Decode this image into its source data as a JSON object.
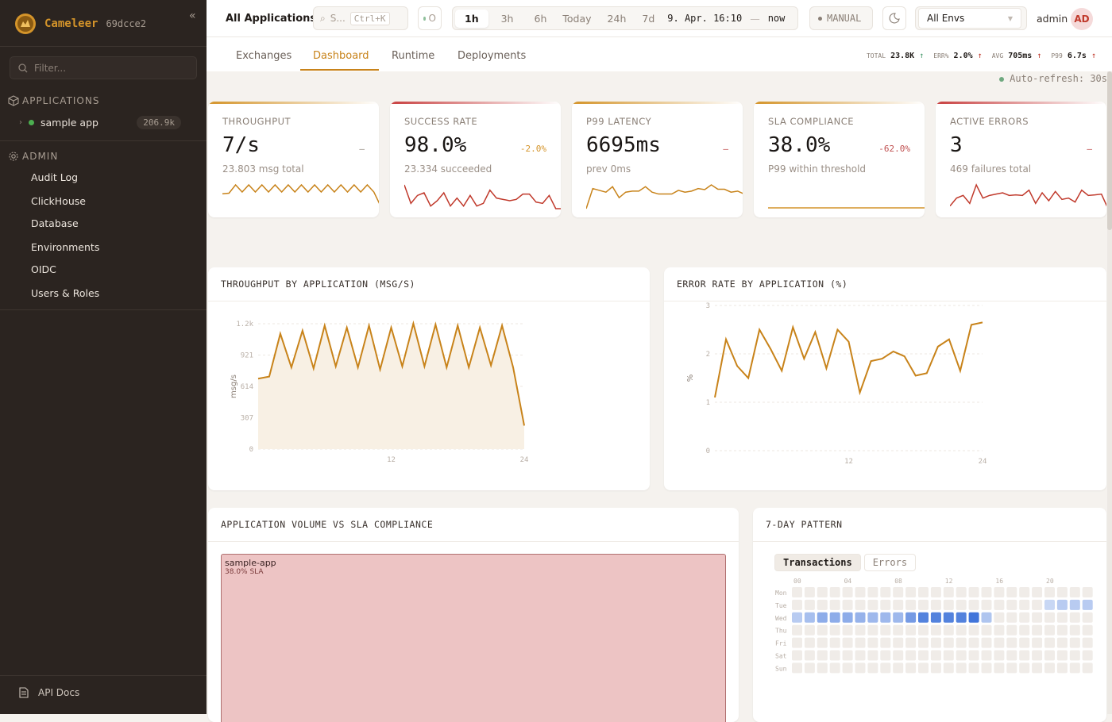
{
  "brand": {
    "name": "Cameleer",
    "version": "69dcce2",
    "collapse": "«"
  },
  "sidebar": {
    "filter_placeholder": "Filter...",
    "applications_label": "APPLICATIONS",
    "apps": [
      {
        "name": "sample app",
        "count": "206.9k",
        "status_color": "#4caf50"
      }
    ],
    "admin_label": "ADMIN",
    "admin_items": [
      "Audit Log",
      "ClickHouse",
      "Database",
      "Environments",
      "OIDC",
      "Users & Roles"
    ],
    "api_docs": "API Docs"
  },
  "topbar": {
    "scope": "All Applications",
    "search_placeholder": "S...",
    "search_shortcut": "Ctrl+K",
    "status_label": "O",
    "ranges": [
      "1h",
      "3h",
      "6h",
      "Today",
      "24h",
      "7d"
    ],
    "active_range": "1h",
    "range_from": "9. Apr. 16:10",
    "range_sep": "—",
    "range_to": "now",
    "refresh_mode": "MANUAL",
    "env": "All Envs",
    "user": "admin",
    "avatar": "AD"
  },
  "tabs": [
    "Exchanges",
    "Dashboard",
    "Runtime",
    "Deployments"
  ],
  "active_tab": "Dashboard",
  "stats": [
    {
      "label": "TOTAL",
      "value": "23.8K",
      "arrow": "↑",
      "dir": "good"
    },
    {
      "label": "ERR%",
      "value": "2.0%",
      "arrow": "↑",
      "dir": "bad"
    },
    {
      "label": "AVG",
      "value": "705ms",
      "arrow": "↑",
      "dir": "bad"
    },
    {
      "label": "P99",
      "value": "6.7s",
      "arrow": "↑",
      "dir": "bad"
    }
  ],
  "auto_refresh": "Auto-refresh: 30s",
  "kpis": [
    {
      "label": "THROUGHPUT",
      "value": "7/s",
      "delta": "–",
      "delta_color": "#9a8f86",
      "sub": "23.803 msg total",
      "accent": "#d4942a",
      "line_color": "#c8831a",
      "spark": [
        5,
        5.2,
        8,
        5.6,
        8,
        5.6,
        8,
        5.6,
        8,
        5.6,
        8,
        5.6,
        8,
        5.6,
        8,
        5.6,
        8,
        5.6,
        8,
        5.6,
        8,
        5.6,
        8,
        5.6,
        1
      ]
    },
    {
      "label": "SUCCESS RATE",
      "value": "98.0%",
      "delta": "-2.0%",
      "delta_color": "#d4942a",
      "sub": "23.334 succeeded",
      "accent": "#c84040",
      "line_color": "#c0392b",
      "spark": [
        9,
        2,
        5,
        6,
        1,
        3,
        6,
        1,
        4,
        1,
        5,
        1,
        2,
        7,
        4,
        3.5,
        3,
        3.5,
        5.5,
        5.5,
        2.5,
        2,
        5,
        0,
        0
      ]
    },
    {
      "label": "P99 LATENCY",
      "value": "6695ms",
      "delta": "–",
      "delta_color": "#c05050",
      "sub": "prev 0ms",
      "accent": "#d4942a",
      "line_color": "#c8831a",
      "spark": [
        0,
        5.5,
        5,
        4.5,
        6,
        3,
        4.5,
        4.8,
        4.8,
        6,
        4.5,
        4,
        4,
        4,
        5,
        4.5,
        4.8,
        5.5,
        5.2,
        6.5,
        5.3,
        5.3,
        4.5,
        4.8,
        4
      ]
    },
    {
      "label": "SLA COMPLIANCE",
      "value": "38.0%",
      "delta": "-62.0%",
      "delta_color": "#c05050",
      "sub": "P99 within threshold",
      "accent": "#d4942a",
      "line_color": "#d4942a",
      "spark": [
        0,
        0
      ]
    },
    {
      "label": "ACTIVE ERRORS",
      "value": "3",
      "delta": "–",
      "delta_color": "#c05050",
      "sub": "469 failures total",
      "accent": "#c84040",
      "line_color": "#c0392b",
      "spark": [
        1,
        4,
        5,
        2,
        9,
        4,
        5,
        5.5,
        6,
        5,
        5.2,
        5,
        7,
        2,
        6,
        3,
        6.5,
        3.5,
        4,
        2.5,
        7,
        5,
        5.2,
        5.5,
        0
      ]
    }
  ],
  "chart_data": [
    {
      "type": "area",
      "title": "THROUGHPUT BY APPLICATION (MSG/S)",
      "xlabel": "",
      "ylabel": "msg/s",
      "ylim": [
        0,
        1228
      ],
      "yticks": [
        "0",
        "307",
        "614",
        "921",
        "1.2k"
      ],
      "xticks": [
        "12",
        "24"
      ],
      "grid": true,
      "color": "#c8831a",
      "x": [
        0,
        1,
        2,
        3,
        4,
        5,
        6,
        7,
        8,
        9,
        10,
        11,
        12,
        13,
        14,
        15,
        16,
        17,
        18,
        19,
        20,
        21,
        22,
        23,
        24
      ],
      "values": [
        690,
        710,
        1130,
        800,
        1160,
        790,
        1210,
        810,
        1190,
        800,
        1210,
        780,
        1190,
        810,
        1230,
        810,
        1220,
        800,
        1210,
        800,
        1190,
        820,
        1210,
        800,
        230
      ]
    },
    {
      "type": "line",
      "title": "ERROR RATE BY APPLICATION (%)",
      "xlabel": "",
      "ylabel": "%",
      "ylim": [
        0,
        3
      ],
      "yticks": [
        "0",
        "1",
        "2",
        "3"
      ],
      "xticks": [
        "12",
        "24"
      ],
      "grid": true,
      "color": "#c8831a",
      "x": [
        0,
        1,
        2,
        3,
        4,
        5,
        6,
        7,
        8,
        9,
        10,
        11,
        12,
        13,
        14,
        15,
        16,
        17,
        18,
        19,
        20,
        21,
        22,
        23,
        24
      ],
      "values": [
        1.1,
        2.3,
        1.75,
        1.5,
        2.5,
        2.1,
        1.65,
        2.55,
        1.9,
        2.45,
        1.7,
        2.5,
        2.25,
        1.2,
        1.85,
        1.9,
        2.05,
        1.95,
        1.55,
        1.6,
        2.15,
        2.3,
        1.65,
        2.6,
        2.65
      ]
    },
    {
      "type": "treemap",
      "title": "APPLICATION VOLUME VS SLA COMPLIANCE",
      "items": [
        {
          "name": "sample-app",
          "label": "38.0% SLA",
          "sla": 38.0,
          "color": "#edc4c4"
        }
      ]
    },
    {
      "type": "heatmap",
      "title": "7-DAY PATTERN",
      "modes": [
        "Transactions",
        "Errors"
      ],
      "active_mode": "Transactions",
      "rows": [
        "Mon",
        "Tue",
        "Wed",
        "Thu",
        "Fri",
        "Sat",
        "Sun"
      ],
      "col_ticks": [
        "00",
        "04",
        "08",
        "12",
        "16",
        "20"
      ],
      "color": "#3a6fd8",
      "values": [
        [
          0,
          0,
          0,
          0,
          0,
          0,
          0,
          0,
          0,
          0,
          0,
          0,
          0,
          0,
          0,
          0,
          0,
          0,
          0,
          0,
          0,
          0,
          0,
          0
        ],
        [
          0,
          0,
          0,
          0,
          0,
          0,
          0,
          0,
          0,
          0,
          0,
          0,
          0,
          0,
          0,
          0,
          0,
          0,
          0,
          0,
          0.15,
          0.25,
          0.25,
          0.25
        ],
        [
          0.25,
          0.35,
          0.5,
          0.5,
          0.5,
          0.45,
          0.4,
          0.4,
          0.4,
          0.65,
          0.85,
          0.85,
          0.85,
          0.85,
          0.95,
          0.3,
          0,
          0,
          0,
          0,
          0,
          0,
          0,
          0
        ],
        [
          0,
          0,
          0,
          0,
          0,
          0,
          0,
          0,
          0,
          0,
          0,
          0,
          0,
          0,
          0,
          0,
          0,
          0,
          0,
          0,
          0,
          0,
          0,
          0
        ],
        [
          0,
          0,
          0,
          0,
          0,
          0,
          0,
          0,
          0,
          0,
          0,
          0,
          0,
          0,
          0,
          0,
          0,
          0,
          0,
          0,
          0,
          0,
          0,
          0
        ],
        [
          0,
          0,
          0,
          0,
          0,
          0,
          0,
          0,
          0,
          0,
          0,
          0,
          0,
          0,
          0,
          0,
          0,
          0,
          0,
          0,
          0,
          0,
          0,
          0
        ],
        [
          0,
          0,
          0,
          0,
          0,
          0,
          0,
          0,
          0,
          0,
          0,
          0,
          0,
          0,
          0,
          0,
          0,
          0,
          0,
          0,
          0,
          0,
          0,
          0
        ]
      ]
    }
  ]
}
